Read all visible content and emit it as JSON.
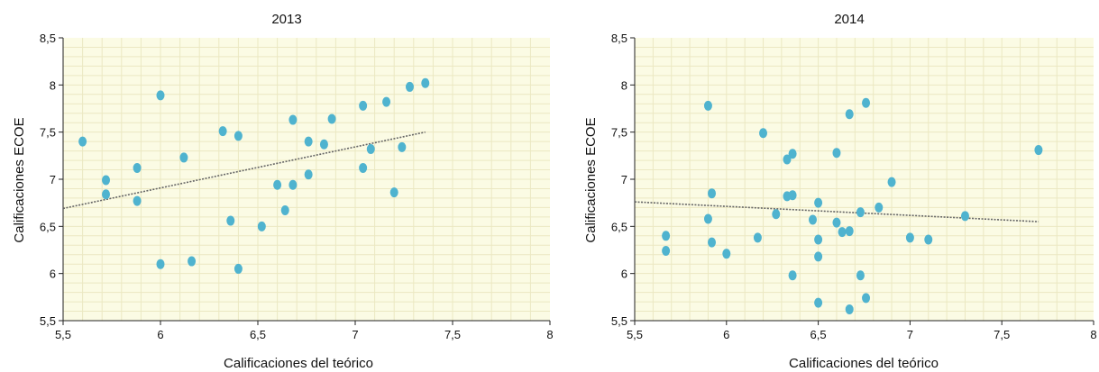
{
  "chart_data": [
    {
      "type": "scatter",
      "title": "2013",
      "xlabel": "Calificaciones del teórico",
      "ylabel": "Calificaciones ECOE",
      "xlim": [
        5.5,
        8
      ],
      "ylim": [
        5.5,
        8.5
      ],
      "x_ticks": [
        "5,5",
        "6",
        "6,5",
        "7",
        "7,5",
        "8"
      ],
      "y_ticks": [
        "5,5",
        "6",
        "6,5",
        "7",
        "7,5",
        "8",
        "8,5"
      ],
      "grid": true,
      "colors": {
        "points": "#4fb3cf",
        "background": "#fbfbe4",
        "grid": "#ebe8c2",
        "trend": "#666666"
      },
      "trendline": {
        "x": [
          5.5,
          7.36
        ],
        "y": [
          6.69,
          7.5
        ]
      },
      "points": [
        {
          "x": 5.6,
          "y": 7.4
        },
        {
          "x": 5.72,
          "y": 6.99
        },
        {
          "x": 5.72,
          "y": 6.84
        },
        {
          "x": 5.88,
          "y": 7.12
        },
        {
          "x": 5.88,
          "y": 6.77
        },
        {
          "x": 6.0,
          "y": 7.89
        },
        {
          "x": 6.0,
          "y": 6.1
        },
        {
          "x": 6.12,
          "y": 7.23
        },
        {
          "x": 6.16,
          "y": 6.13
        },
        {
          "x": 6.32,
          "y": 7.51
        },
        {
          "x": 6.36,
          "y": 6.56
        },
        {
          "x": 6.4,
          "y": 7.46
        },
        {
          "x": 6.4,
          "y": 6.05
        },
        {
          "x": 6.52,
          "y": 6.5
        },
        {
          "x": 6.6,
          "y": 6.94
        },
        {
          "x": 6.64,
          "y": 6.67
        },
        {
          "x": 6.68,
          "y": 7.63
        },
        {
          "x": 6.68,
          "y": 6.94
        },
        {
          "x": 6.76,
          "y": 7.4
        },
        {
          "x": 6.76,
          "y": 7.05
        },
        {
          "x": 6.84,
          "y": 7.37
        },
        {
          "x": 6.88,
          "y": 7.64
        },
        {
          "x": 7.04,
          "y": 7.78
        },
        {
          "x": 7.04,
          "y": 7.12
        },
        {
          "x": 7.08,
          "y": 7.32
        },
        {
          "x": 7.16,
          "y": 7.82
        },
        {
          "x": 7.2,
          "y": 6.86
        },
        {
          "x": 7.24,
          "y": 7.34
        },
        {
          "x": 7.28,
          "y": 7.98
        },
        {
          "x": 7.36,
          "y": 8.02
        }
      ]
    },
    {
      "type": "scatter",
      "title": "2014",
      "xlabel": "Calificaciones del teórico",
      "ylabel": "Calificaciones ECOE",
      "xlim": [
        5.5,
        8
      ],
      "ylim": [
        5.5,
        8.5
      ],
      "x_ticks": [
        "5,5",
        "6",
        "6,5",
        "7",
        "7,5",
        "8"
      ],
      "y_ticks": [
        "5,5",
        "6",
        "6,5",
        "7",
        "7,5",
        "8",
        "8,5"
      ],
      "grid": true,
      "colors": {
        "points": "#4fb3cf",
        "background": "#fbfbe4",
        "grid": "#ebe8c2",
        "trend": "#666666"
      },
      "trendline": {
        "x": [
          5.5,
          7.7
        ],
        "y": [
          6.76,
          6.55
        ]
      },
      "points": [
        {
          "x": 5.67,
          "y": 6.4
        },
        {
          "x": 5.67,
          "y": 6.24
        },
        {
          "x": 5.9,
          "y": 7.78
        },
        {
          "x": 5.9,
          "y": 6.58
        },
        {
          "x": 5.92,
          "y": 6.85
        },
        {
          "x": 5.92,
          "y": 6.33
        },
        {
          "x": 6.0,
          "y": 6.21
        },
        {
          "x": 6.17,
          "y": 6.38
        },
        {
          "x": 6.2,
          "y": 7.49
        },
        {
          "x": 6.27,
          "y": 6.63
        },
        {
          "x": 6.33,
          "y": 7.21
        },
        {
          "x": 6.33,
          "y": 6.82
        },
        {
          "x": 6.36,
          "y": 7.27
        },
        {
          "x": 6.36,
          "y": 6.83
        },
        {
          "x": 6.36,
          "y": 5.98
        },
        {
          "x": 6.47,
          "y": 6.57
        },
        {
          "x": 6.5,
          "y": 6.75
        },
        {
          "x": 6.5,
          "y": 6.36
        },
        {
          "x": 6.5,
          "y": 6.18
        },
        {
          "x": 6.5,
          "y": 5.69
        },
        {
          "x": 6.6,
          "y": 7.28
        },
        {
          "x": 6.6,
          "y": 6.54
        },
        {
          "x": 6.63,
          "y": 6.44
        },
        {
          "x": 6.67,
          "y": 7.69
        },
        {
          "x": 6.67,
          "y": 6.45
        },
        {
          "x": 6.67,
          "y": 5.62
        },
        {
          "x": 6.73,
          "y": 6.65
        },
        {
          "x": 6.73,
          "y": 5.98
        },
        {
          "x": 6.76,
          "y": 7.81
        },
        {
          "x": 6.76,
          "y": 5.74
        },
        {
          "x": 6.83,
          "y": 6.7
        },
        {
          "x": 6.9,
          "y": 6.97
        },
        {
          "x": 7.0,
          "y": 6.38
        },
        {
          "x": 7.1,
          "y": 6.36
        },
        {
          "x": 7.3,
          "y": 6.61
        },
        {
          "x": 7.7,
          "y": 7.31
        }
      ]
    }
  ]
}
